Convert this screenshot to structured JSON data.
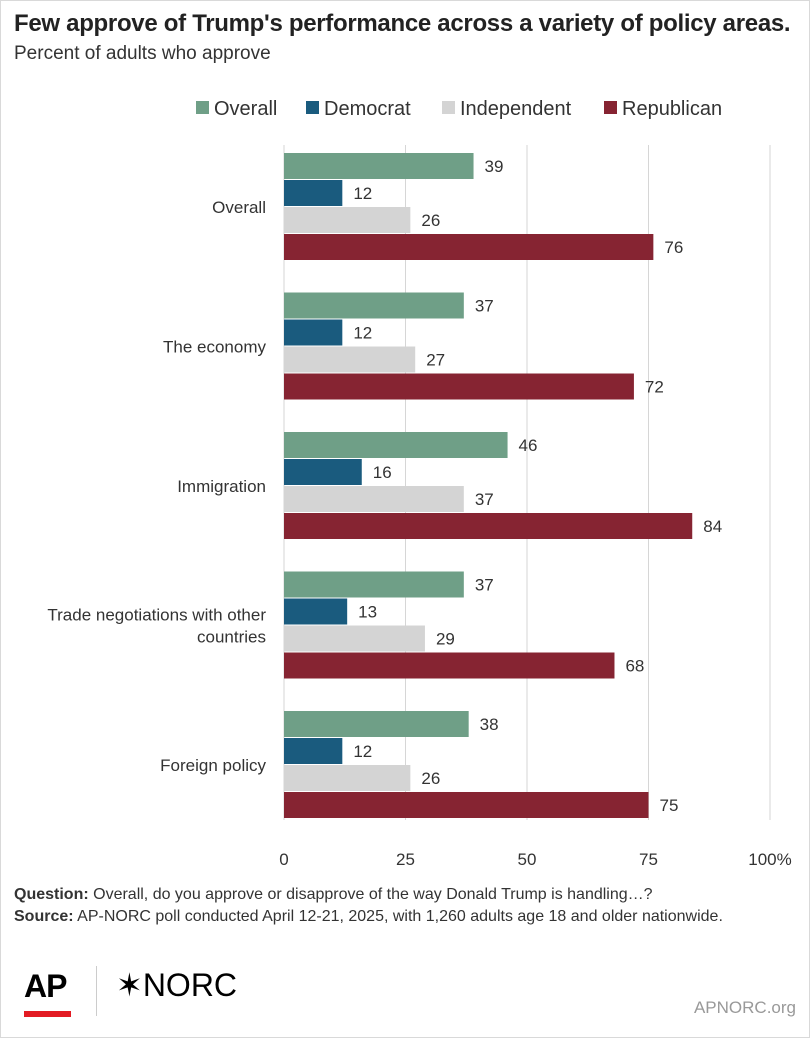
{
  "title": "Few approve of Trump's performance across a variety of policy areas.",
  "subtitle": "Percent of adults who approve",
  "notes": {
    "question_label": "Question:",
    "question_text": " Overall, do you approve or disapprove of the way Donald Trump is handling…?",
    "source_label": "Source:",
    "source_text": " AP-NORC poll conducted April 12-21, 2025, with 1,260 adults age 18 and older nationwide."
  },
  "logos": {
    "ap": "AP",
    "norc": "✶NORC"
  },
  "site": "APNORC.org",
  "chart_data": {
    "type": "bar",
    "orientation": "horizontal",
    "categories": [
      [
        "Overall"
      ],
      [
        "The economy"
      ],
      [
        "Immigration"
      ],
      [
        "Trade negotiations with other",
        "countries"
      ],
      [
        "Foreign policy"
      ]
    ],
    "series": [
      {
        "name": "Overall",
        "color": "#6f9f87",
        "values": [
          39,
          37,
          46,
          37,
          38
        ]
      },
      {
        "name": "Democrat",
        "color": "#1a5b7e",
        "values": [
          12,
          12,
          16,
          13,
          12
        ]
      },
      {
        "name": "Independent",
        "color": "#d4d4d4",
        "values": [
          26,
          27,
          37,
          29,
          26
        ]
      },
      {
        "name": "Republican",
        "color": "#862432",
        "values": [
          76,
          72,
          84,
          68,
          75
        ]
      }
    ],
    "xlim": [
      0,
      100
    ],
    "xticks": [
      "0",
      "25",
      "50",
      "75",
      "100%"
    ],
    "grid": true,
    "legend_position": "top"
  }
}
